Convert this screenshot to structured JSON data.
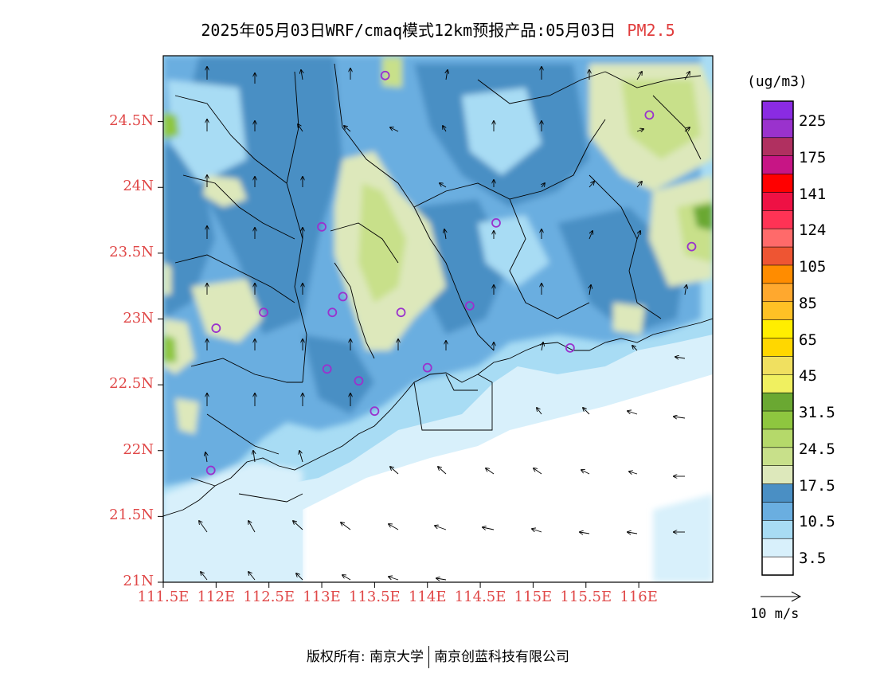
{
  "title": {
    "main": "2025年05月03日WRF/cmaq模式12km预报产品:05月03日",
    "species": "PM2.5"
  },
  "y_axis": {
    "ticks": [
      "24.5N",
      "24N",
      "23.5N",
      "23N",
      "22.5N",
      "22N",
      "21.5N",
      "21N"
    ],
    "values": [
      24.5,
      24,
      23.5,
      23,
      22.5,
      22,
      21.5,
      21
    ]
  },
  "x_axis": {
    "ticks": [
      "111.5E",
      "112E",
      "112.5E",
      "113E",
      "113.5E",
      "114E",
      "114.5E",
      "115E",
      "115.5E",
      "116E"
    ],
    "values": [
      111.5,
      112,
      112.5,
      113,
      113.5,
      114,
      114.5,
      115,
      115.5,
      116
    ]
  },
  "extent": {
    "lon_min": 111.5,
    "lon_max": 116.7,
    "lat_min": 21.0,
    "lat_max": 25.0
  },
  "colorbar": {
    "unit": "(ug/m3)",
    "labels": [
      "225",
      "175",
      "141",
      "124",
      "105",
      "85",
      "65",
      "45",
      "31.5",
      "24.5",
      "17.5",
      "10.5",
      "3.5"
    ],
    "colors_top_to_bottom": [
      "#8a2be2",
      "#9a32cd",
      "#b03060",
      "#c71585",
      "#ff0000",
      "#ee1144",
      "#ff3355",
      "#ff6a6a",
      "#ee5533",
      "#ff8c00",
      "#ffa82e",
      "#ffc125",
      "#ffee00",
      "#ffd700",
      "#f0e060",
      "#f0f060",
      "#6aa832",
      "#8ec63f",
      "#b5d96a",
      "#c8e08a",
      "#dde8bb",
      "#4a8fc4",
      "#6aaee0",
      "#a8dcf4",
      "#d8f0fb",
      "#ffffff"
    ]
  },
  "wind_reference": {
    "label": "10 m/s"
  },
  "stations": [
    [
      113.6,
      24.85
    ],
    [
      116.1,
      24.55
    ],
    [
      113.0,
      23.7
    ],
    [
      114.65,
      23.73
    ],
    [
      116.5,
      23.55
    ],
    [
      112.45,
      23.05
    ],
    [
      113.2,
      23.17
    ],
    [
      113.1,
      23.05
    ],
    [
      113.75,
      23.05
    ],
    [
      114.4,
      23.1
    ],
    [
      112.0,
      22.93
    ],
    [
      115.35,
      22.78
    ],
    [
      113.05,
      22.62
    ],
    [
      114.0,
      22.63
    ],
    [
      113.35,
      22.53
    ],
    [
      113.5,
      22.3
    ],
    [
      111.95,
      21.85
    ]
  ],
  "copyright": {
    "left": "版权所有: 南京大学",
    "right": "南京创蓝科技有限公司"
  }
}
